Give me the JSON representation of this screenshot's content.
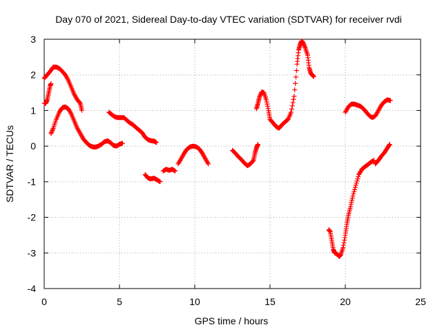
{
  "chart_data": {
    "type": "scatter",
    "title": "Day 070 of 2021, Sidereal Day-to-day VTEC variation (SDTVAR) for receiver rvdi",
    "xlabel": "GPS time / hours",
    "ylabel": "SDTVAR / TECUs",
    "xlim": [
      0,
      25
    ],
    "ylim": [
      -4,
      3
    ],
    "xticks": [
      "0",
      "5",
      "10",
      "15",
      "20",
      "25"
    ],
    "yticks": [
      "-4",
      "-3",
      "-2",
      "-1",
      "0",
      "1",
      "2",
      "3"
    ],
    "grid": true,
    "marker": "+",
    "color": "#ff0000",
    "series": [
      {
        "points": [
          [
            0.0,
            1.9
          ],
          [
            0.2,
            2.0
          ],
          [
            0.4,
            2.1
          ],
          [
            0.6,
            2.22
          ],
          [
            0.8,
            2.22
          ],
          [
            1.0,
            2.18
          ],
          [
            1.2,
            2.1
          ],
          [
            1.4,
            2.0
          ],
          [
            1.6,
            1.85
          ],
          [
            1.8,
            1.65
          ],
          [
            2.0,
            1.45
          ],
          [
            2.2,
            1.3
          ],
          [
            2.4,
            1.2
          ],
          [
            2.5,
            1.0
          ]
        ]
      },
      {
        "points": [
          [
            0.0,
            1.2
          ],
          [
            0.1,
            1.2
          ],
          [
            0.2,
            1.3
          ],
          [
            0.3,
            1.5
          ],
          [
            0.4,
            1.7
          ],
          [
            0.45,
            1.75
          ]
        ]
      },
      {
        "points": [
          [
            0.45,
            0.35
          ],
          [
            0.6,
            0.5
          ],
          [
            0.8,
            0.75
          ],
          [
            1.0,
            0.95
          ],
          [
            1.2,
            1.08
          ],
          [
            1.4,
            1.1
          ],
          [
            1.6,
            1.05
          ],
          [
            1.8,
            0.9
          ],
          [
            2.0,
            0.7
          ],
          [
            2.2,
            0.5
          ],
          [
            2.4,
            0.35
          ],
          [
            2.6,
            0.2
          ],
          [
            2.8,
            0.1
          ],
          [
            3.0,
            0.02
          ],
          [
            3.2,
            -0.02
          ],
          [
            3.4,
            -0.03
          ],
          [
            3.6,
            0.0
          ],
          [
            3.8,
            0.05
          ],
          [
            4.0,
            0.12
          ],
          [
            4.2,
            0.15
          ],
          [
            4.4,
            0.1
          ],
          [
            4.6,
            0.02
          ],
          [
            4.8,
            0.0
          ],
          [
            5.0,
            0.05
          ],
          [
            5.2,
            0.08
          ]
        ]
      },
      {
        "points": [
          [
            4.3,
            0.95
          ],
          [
            4.5,
            0.88
          ],
          [
            4.7,
            0.82
          ],
          [
            4.9,
            0.8
          ],
          [
            5.1,
            0.8
          ],
          [
            5.3,
            0.8
          ],
          [
            5.5,
            0.72
          ],
          [
            5.7,
            0.65
          ],
          [
            5.9,
            0.6
          ],
          [
            6.1,
            0.52
          ],
          [
            6.3,
            0.45
          ],
          [
            6.5,
            0.38
          ],
          [
            6.7,
            0.25
          ],
          [
            6.9,
            0.18
          ],
          [
            7.1,
            0.15
          ],
          [
            7.3,
            0.14
          ],
          [
            7.45,
            0.1
          ]
        ]
      },
      {
        "points": [
          [
            6.7,
            -0.8
          ],
          [
            6.9,
            -0.9
          ],
          [
            7.1,
            -0.92
          ],
          [
            7.3,
            -0.9
          ],
          [
            7.5,
            -0.95
          ],
          [
            7.7,
            -1.0
          ]
        ]
      },
      {
        "points": [
          [
            7.9,
            -0.7
          ],
          [
            8.1,
            -0.65
          ],
          [
            8.3,
            -0.68
          ],
          [
            8.5,
            -0.65
          ],
          [
            8.7,
            -0.7
          ]
        ]
      },
      {
        "points": [
          [
            8.9,
            -0.5
          ],
          [
            9.1,
            -0.35
          ],
          [
            9.3,
            -0.2
          ],
          [
            9.5,
            -0.08
          ],
          [
            9.7,
            -0.02
          ],
          [
            9.9,
            -0.0
          ],
          [
            10.1,
            -0.02
          ],
          [
            10.3,
            -0.08
          ],
          [
            10.5,
            -0.2
          ],
          [
            10.7,
            -0.35
          ],
          [
            10.9,
            -0.5
          ]
        ]
      },
      {
        "points": [
          [
            12.5,
            -0.12
          ],
          [
            12.7,
            -0.2
          ],
          [
            12.9,
            -0.3
          ],
          [
            13.1,
            -0.38
          ],
          [
            13.3,
            -0.48
          ],
          [
            13.5,
            -0.55
          ],
          [
            13.7,
            -0.5
          ],
          [
            13.9,
            -0.4
          ],
          [
            14.0,
            -0.2
          ],
          [
            14.1,
            -0.05
          ],
          [
            14.2,
            0.05
          ]
        ]
      },
      {
        "points": [
          [
            14.1,
            1.05
          ],
          [
            14.2,
            1.2
          ],
          [
            14.3,
            1.38
          ],
          [
            14.45,
            1.52
          ],
          [
            14.6,
            1.5
          ],
          [
            14.75,
            1.3
          ],
          [
            14.9,
            1.0
          ],
          [
            15.0,
            0.75
          ],
          [
            15.2,
            0.65
          ],
          [
            15.4,
            0.55
          ],
          [
            15.6,
            0.5
          ],
          [
            15.8,
            0.6
          ],
          [
            16.0,
            0.68
          ],
          [
            16.2,
            0.75
          ],
          [
            16.4,
            0.95
          ],
          [
            16.6,
            1.4
          ],
          [
            16.8,
            2.3
          ],
          [
            16.9,
            2.7
          ],
          [
            17.0,
            2.85
          ],
          [
            17.1,
            2.95
          ],
          [
            17.2,
            2.9
          ],
          [
            17.35,
            2.75
          ],
          [
            17.5,
            2.55
          ],
          [
            17.6,
            2.2
          ],
          [
            17.7,
            2.05
          ],
          [
            17.8,
            2.0
          ],
          [
            17.9,
            1.95
          ]
        ]
      },
      {
        "points": [
          [
            18.9,
            -2.35
          ],
          [
            19.0,
            -2.4
          ],
          [
            19.1,
            -2.65
          ],
          [
            19.2,
            -2.9
          ],
          [
            19.3,
            -3.0
          ],
          [
            19.5,
            -3.05
          ],
          [
            19.6,
            -3.1
          ],
          [
            19.7,
            -3.05
          ],
          [
            19.85,
            -2.85
          ],
          [
            20.0,
            -2.5
          ],
          [
            20.1,
            -2.2
          ],
          [
            20.2,
            -1.95
          ],
          [
            20.35,
            -1.7
          ],
          [
            20.5,
            -1.4
          ],
          [
            20.7,
            -1.1
          ],
          [
            20.9,
            -0.8
          ],
          [
            21.1,
            -0.65
          ],
          [
            21.3,
            -0.58
          ],
          [
            21.5,
            -0.52
          ],
          [
            21.7,
            -0.45
          ],
          [
            21.9,
            -0.4
          ]
        ]
      },
      {
        "points": [
          [
            22.0,
            -0.5
          ],
          [
            22.2,
            -0.4
          ],
          [
            22.4,
            -0.28
          ],
          [
            22.6,
            -0.18
          ],
          [
            22.8,
            -0.05
          ],
          [
            22.95,
            0.05
          ]
        ]
      },
      {
        "points": [
          [
            20.0,
            0.95
          ],
          [
            20.2,
            1.1
          ],
          [
            20.4,
            1.18
          ],
          [
            20.6,
            1.18
          ],
          [
            20.8,
            1.15
          ],
          [
            21.0,
            1.12
          ],
          [
            21.2,
            1.05
          ],
          [
            21.4,
            0.95
          ],
          [
            21.6,
            0.85
          ],
          [
            21.8,
            0.8
          ],
          [
            22.0,
            0.85
          ],
          [
            22.2,
            1.0
          ],
          [
            22.4,
            1.15
          ],
          [
            22.6,
            1.25
          ],
          [
            22.8,
            1.3
          ],
          [
            23.0,
            1.28
          ]
        ]
      }
    ]
  }
}
